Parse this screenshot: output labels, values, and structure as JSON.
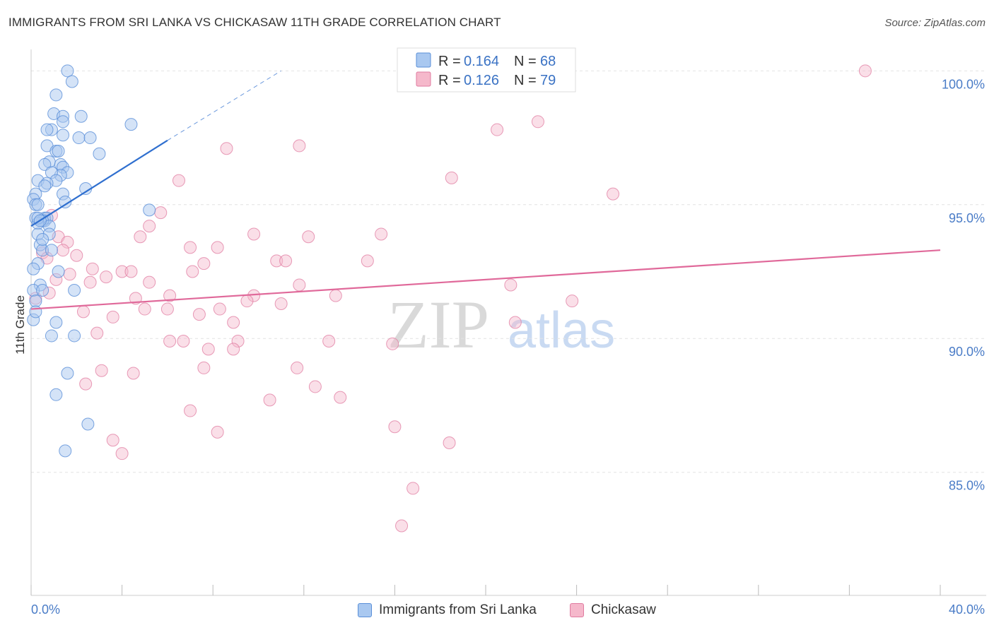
{
  "header": {
    "title": "IMMIGRANTS FROM SRI LANKA VS CHICKASAW 11TH GRADE CORRELATION CHART",
    "source": "Source: ZipAtlas.com"
  },
  "watermark": {
    "zip": "ZIP",
    "atlas": "atlas"
  },
  "colors": {
    "blue_fill": "#a9c8f0",
    "blue_stroke": "#5a8fd8",
    "blue_line": "#2f6fcf",
    "pink_fill": "#f5b8cb",
    "pink_stroke": "#e07ba0",
    "pink_line": "#e0699a",
    "tick_text": "#4a7cc7",
    "grid": "#e2e2e2"
  },
  "legend": {
    "items": [
      {
        "r_label": "R =",
        "r_value": "0.164",
        "n_label": "N =",
        "n_value": "68"
      },
      {
        "r_label": "R =",
        "r_value": "0.126",
        "n_label": "N =",
        "n_value": "79"
      }
    ]
  },
  "chart_data": {
    "type": "scatter",
    "title": "IMMIGRANTS FROM SRI LANKA VS CHICKASAW 11TH GRADE CORRELATION CHART",
    "xlabel": "",
    "ylabel": "11th Grade",
    "xlim": [
      0,
      40
    ],
    "ylim": [
      80.4,
      100.8
    ],
    "x_tick_labels": [
      "0.0%",
      "40.0%"
    ],
    "y_ticks": [
      85,
      90,
      95,
      100
    ],
    "y_tick_labels": [
      "85.0%",
      "90.0%",
      "95.0%",
      "100.0%"
    ],
    "grid": true,
    "series": [
      {
        "name": "Immigrants from Sri Lanka",
        "R": 0.164,
        "N": 68,
        "trend": {
          "x0": 0.0,
          "y0": 94.2,
          "x1": 6.0,
          "y1": 97.4,
          "dash_to_x": 11.0,
          "dash_to_y": 100.0
        },
        "points": [
          [
            1.6,
            100.0
          ],
          [
            1.8,
            99.6
          ],
          [
            1.1,
            99.1
          ],
          [
            1.0,
            98.4
          ],
          [
            1.4,
            98.3
          ],
          [
            2.2,
            98.3
          ],
          [
            4.4,
            98.0
          ],
          [
            1.4,
            98.1
          ],
          [
            0.9,
            97.8
          ],
          [
            0.7,
            97.8
          ],
          [
            1.4,
            97.6
          ],
          [
            2.1,
            97.5
          ],
          [
            2.6,
            97.5
          ],
          [
            0.7,
            97.2
          ],
          [
            1.1,
            97.0
          ],
          [
            1.2,
            97.0
          ],
          [
            3.0,
            96.9
          ],
          [
            0.8,
            96.6
          ],
          [
            0.6,
            96.5
          ],
          [
            1.3,
            96.5
          ],
          [
            1.4,
            96.4
          ],
          [
            1.6,
            96.2
          ],
          [
            1.3,
            96.1
          ],
          [
            0.9,
            96.2
          ],
          [
            0.3,
            95.9
          ],
          [
            1.1,
            95.9
          ],
          [
            0.7,
            95.8
          ],
          [
            0.6,
            95.7
          ],
          [
            2.4,
            95.6
          ],
          [
            0.2,
            95.4
          ],
          [
            1.4,
            95.4
          ],
          [
            0.1,
            95.2
          ],
          [
            1.5,
            95.1
          ],
          [
            0.2,
            95.0
          ],
          [
            5.2,
            94.8
          ],
          [
            0.2,
            94.5
          ],
          [
            0.6,
            94.4
          ],
          [
            0.6,
            94.5
          ],
          [
            0.7,
            94.5
          ],
          [
            0.5,
            94.4
          ],
          [
            0.3,
            94.3
          ],
          [
            0.8,
            94.2
          ],
          [
            0.3,
            93.9
          ],
          [
            0.8,
            93.9
          ],
          [
            0.4,
            93.5
          ],
          [
            0.5,
            93.3
          ],
          [
            0.9,
            93.3
          ],
          [
            0.3,
            92.8
          ],
          [
            0.1,
            92.6
          ],
          [
            1.2,
            92.5
          ],
          [
            0.4,
            92.0
          ],
          [
            0.1,
            91.8
          ],
          [
            0.5,
            91.8
          ],
          [
            1.9,
            91.8
          ],
          [
            0.2,
            91.4
          ],
          [
            1.1,
            90.6
          ],
          [
            0.1,
            90.7
          ],
          [
            0.9,
            90.1
          ],
          [
            1.9,
            90.1
          ],
          [
            1.6,
            88.7
          ],
          [
            1.1,
            87.9
          ],
          [
            2.5,
            86.8
          ],
          [
            1.5,
            85.8
          ],
          [
            0.2,
            91.0
          ],
          [
            0.3,
            94.5
          ],
          [
            0.4,
            94.4
          ],
          [
            0.3,
            95.0
          ],
          [
            0.5,
            93.7
          ]
        ]
      },
      {
        "name": "Chickasaw",
        "R": 0.126,
        "N": 79,
        "trend": {
          "x0": 0.0,
          "y0": 91.1,
          "x1": 40.0,
          "y1": 93.3
        },
        "points": [
          [
            36.7,
            100.0
          ],
          [
            22.3,
            98.1
          ],
          [
            20.5,
            97.8
          ],
          [
            11.8,
            97.2
          ],
          [
            8.6,
            97.1
          ],
          [
            6.5,
            95.9
          ],
          [
            18.5,
            96.0
          ],
          [
            25.6,
            95.4
          ],
          [
            5.7,
            94.7
          ],
          [
            0.9,
            94.6
          ],
          [
            5.2,
            94.2
          ],
          [
            15.4,
            93.9
          ],
          [
            9.8,
            93.9
          ],
          [
            12.2,
            93.8
          ],
          [
            4.8,
            93.8
          ],
          [
            1.2,
            93.8
          ],
          [
            1.6,
            93.6
          ],
          [
            7.0,
            93.4
          ],
          [
            8.2,
            93.4
          ],
          [
            1.4,
            93.3
          ],
          [
            0.5,
            93.2
          ],
          [
            0.7,
            93.0
          ],
          [
            2.0,
            93.1
          ],
          [
            10.8,
            92.9
          ],
          [
            11.2,
            92.9
          ],
          [
            14.8,
            92.9
          ],
          [
            7.6,
            92.8
          ],
          [
            2.7,
            92.6
          ],
          [
            7.1,
            92.5
          ],
          [
            4.0,
            92.5
          ],
          [
            4.4,
            92.5
          ],
          [
            1.7,
            92.4
          ],
          [
            3.3,
            92.3
          ],
          [
            1.1,
            92.2
          ],
          [
            2.6,
            92.1
          ],
          [
            5.2,
            92.1
          ],
          [
            11.8,
            92.0
          ],
          [
            21.1,
            92.0
          ],
          [
            6.1,
            91.6
          ],
          [
            9.8,
            91.6
          ],
          [
            0.8,
            91.7
          ],
          [
            4.6,
            91.5
          ],
          [
            13.4,
            91.6
          ],
          [
            0.2,
            91.5
          ],
          [
            9.5,
            91.4
          ],
          [
            11.0,
            91.3
          ],
          [
            23.8,
            91.4
          ],
          [
            5.0,
            91.1
          ],
          [
            6.0,
            91.1
          ],
          [
            8.3,
            91.1
          ],
          [
            2.3,
            91.0
          ],
          [
            7.4,
            90.9
          ],
          [
            3.6,
            90.8
          ],
          [
            8.9,
            90.6
          ],
          [
            21.3,
            90.6
          ],
          [
            2.9,
            90.2
          ],
          [
            6.1,
            89.9
          ],
          [
            6.7,
            89.9
          ],
          [
            9.1,
            89.9
          ],
          [
            13.1,
            89.9
          ],
          [
            7.8,
            89.6
          ],
          [
            8.9,
            89.6
          ],
          [
            15.9,
            89.8
          ],
          [
            11.7,
            88.9
          ],
          [
            7.6,
            88.9
          ],
          [
            3.1,
            88.8
          ],
          [
            4.5,
            88.7
          ],
          [
            2.4,
            88.3
          ],
          [
            12.5,
            88.2
          ],
          [
            13.6,
            87.8
          ],
          [
            10.5,
            87.7
          ],
          [
            7.0,
            87.3
          ],
          [
            16.0,
            86.7
          ],
          [
            8.2,
            86.5
          ],
          [
            3.6,
            86.2
          ],
          [
            18.4,
            86.1
          ],
          [
            4.0,
            85.7
          ],
          [
            16.8,
            84.4
          ],
          [
            16.3,
            83.0
          ]
        ]
      }
    ]
  },
  "bottom_legend": {
    "items": [
      {
        "label": "Immigrants from Sri Lanka"
      },
      {
        "label": "Chickasaw"
      }
    ]
  }
}
